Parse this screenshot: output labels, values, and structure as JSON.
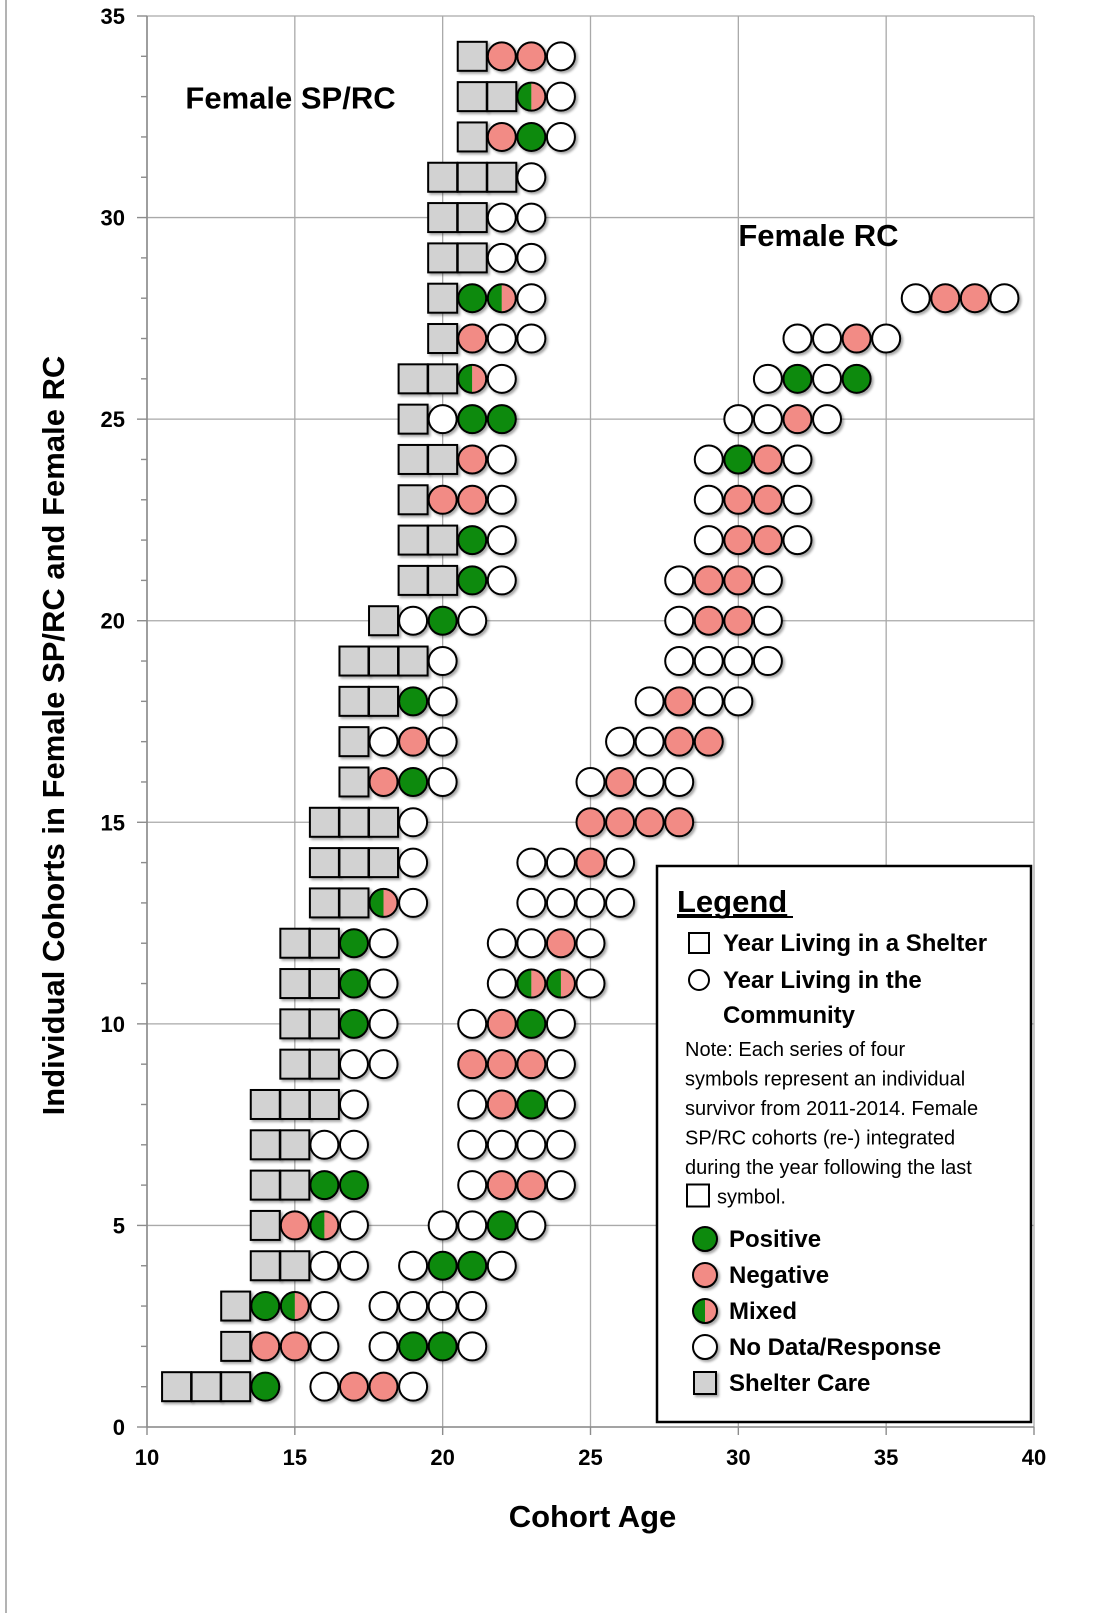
{
  "chart_data": {
    "type": "scatter",
    "title": "",
    "xlabel": "Cohort Age",
    "ylabel": "Individual Cohorts in Female SP/RC and Female RC",
    "xlim": [
      10,
      40
    ],
    "ylim": [
      0,
      35
    ],
    "x_ticks": [
      10,
      15,
      20,
      25,
      30,
      35,
      40
    ],
    "y_ticks": [
      0,
      5,
      10,
      15,
      20,
      25,
      30,
      35
    ],
    "grid": true,
    "group_labels": [
      {
        "name": "Female SP/RC",
        "anchor": [
          11.3,
          32.7
        ]
      },
      {
        "name": "Female RC",
        "anchor": [
          30.0,
          29.3
        ]
      }
    ],
    "colors": {
      "shelter": "#d2d2d2",
      "positive": "#0a8a0a",
      "negative": "#f28b85",
      "none": "#ffffff",
      "stroke": "#000000"
    },
    "cohorts": [
      {
        "group": "Female SP/RC",
        "y": 1,
        "ages": [
          11,
          12,
          13,
          14
        ],
        "status": [
          "shelter",
          "shelter",
          "shelter",
          "positive"
        ]
      },
      {
        "group": "Female SP/RC",
        "y": 2,
        "ages": [
          13,
          14,
          15,
          16
        ],
        "status": [
          "shelter",
          "negative",
          "negative",
          "none"
        ]
      },
      {
        "group": "Female SP/RC",
        "y": 3,
        "ages": [
          13,
          14,
          15,
          16
        ],
        "status": [
          "shelter",
          "positive",
          "mixed",
          "none"
        ]
      },
      {
        "group": "Female SP/RC",
        "y": 4,
        "ages": [
          14,
          15,
          16,
          17
        ],
        "status": [
          "shelter",
          "shelter",
          "none",
          "none"
        ]
      },
      {
        "group": "Female SP/RC",
        "y": 5,
        "ages": [
          14,
          15,
          16,
          17
        ],
        "status": [
          "shelter",
          "negative",
          "mixed",
          "none"
        ]
      },
      {
        "group": "Female SP/RC",
        "y": 6,
        "ages": [
          14,
          15,
          16,
          17
        ],
        "status": [
          "shelter",
          "shelter",
          "positive",
          "positive"
        ]
      },
      {
        "group": "Female SP/RC",
        "y": 7,
        "ages": [
          14,
          15,
          16,
          17
        ],
        "status": [
          "shelter",
          "shelter",
          "none",
          "none"
        ]
      },
      {
        "group": "Female SP/RC",
        "y": 8,
        "ages": [
          14,
          15,
          16,
          17
        ],
        "status": [
          "shelter",
          "shelter",
          "shelter",
          "none"
        ]
      },
      {
        "group": "Female SP/RC",
        "y": 9,
        "ages": [
          15,
          16,
          17,
          18
        ],
        "status": [
          "shelter",
          "shelter",
          "none",
          "none"
        ]
      },
      {
        "group": "Female SP/RC",
        "y": 10,
        "ages": [
          15,
          16,
          17,
          18
        ],
        "status": [
          "shelter",
          "shelter",
          "positive",
          "none"
        ]
      },
      {
        "group": "Female SP/RC",
        "y": 11,
        "ages": [
          15,
          16,
          17,
          18
        ],
        "status": [
          "shelter",
          "shelter",
          "positive",
          "none"
        ]
      },
      {
        "group": "Female SP/RC",
        "y": 12,
        "ages": [
          15,
          16,
          17,
          18
        ],
        "status": [
          "shelter",
          "shelter",
          "positive",
          "none"
        ]
      },
      {
        "group": "Female SP/RC",
        "y": 13,
        "ages": [
          16,
          17,
          18,
          19
        ],
        "status": [
          "shelter",
          "shelter",
          "mixed",
          "none"
        ]
      },
      {
        "group": "Female SP/RC",
        "y": 14,
        "ages": [
          16,
          17,
          18,
          19
        ],
        "status": [
          "shelter",
          "shelter",
          "shelter",
          "none"
        ]
      },
      {
        "group": "Female SP/RC",
        "y": 15,
        "ages": [
          16,
          17,
          18,
          19
        ],
        "status": [
          "shelter",
          "shelter",
          "shelter",
          "none"
        ]
      },
      {
        "group": "Female SP/RC",
        "y": 16,
        "ages": [
          17,
          18,
          19,
          20
        ],
        "status": [
          "shelter",
          "negative",
          "positive",
          "none"
        ]
      },
      {
        "group": "Female SP/RC",
        "y": 17,
        "ages": [
          17,
          18,
          19,
          20
        ],
        "status": [
          "shelter",
          "none",
          "negative",
          "none"
        ]
      },
      {
        "group": "Female SP/RC",
        "y": 18,
        "ages": [
          17,
          18,
          19,
          20
        ],
        "status": [
          "shelter",
          "shelter",
          "positive",
          "none"
        ]
      },
      {
        "group": "Female SP/RC",
        "y": 19,
        "ages": [
          17,
          18,
          19,
          20
        ],
        "status": [
          "shelter",
          "shelter",
          "shelter",
          "none"
        ]
      },
      {
        "group": "Female SP/RC",
        "y": 20,
        "ages": [
          18,
          19,
          20,
          21
        ],
        "status": [
          "shelter",
          "none",
          "positive",
          "none"
        ]
      },
      {
        "group": "Female SP/RC",
        "y": 21,
        "ages": [
          19,
          20,
          21,
          22
        ],
        "status": [
          "shelter",
          "shelter",
          "positive",
          "none"
        ]
      },
      {
        "group": "Female SP/RC",
        "y": 22,
        "ages": [
          19,
          20,
          21,
          22
        ],
        "status": [
          "shelter",
          "shelter",
          "positive",
          "none"
        ]
      },
      {
        "group": "Female SP/RC",
        "y": 23,
        "ages": [
          19,
          20,
          21,
          22
        ],
        "status": [
          "shelter",
          "negative",
          "negative",
          "none"
        ]
      },
      {
        "group": "Female SP/RC",
        "y": 24,
        "ages": [
          19,
          20,
          21,
          22
        ],
        "status": [
          "shelter",
          "shelter",
          "negative",
          "none"
        ]
      },
      {
        "group": "Female SP/RC",
        "y": 25,
        "ages": [
          19,
          20,
          21,
          22
        ],
        "status": [
          "shelter",
          "none",
          "positive",
          "positive"
        ]
      },
      {
        "group": "Female SP/RC",
        "y": 26,
        "ages": [
          19,
          20,
          21,
          22
        ],
        "status": [
          "shelter",
          "shelter",
          "mixed",
          "none"
        ]
      },
      {
        "group": "Female SP/RC",
        "y": 27,
        "ages": [
          20,
          21,
          22,
          23
        ],
        "status": [
          "shelter",
          "negative",
          "none",
          "none"
        ]
      },
      {
        "group": "Female SP/RC",
        "y": 28,
        "ages": [
          20,
          21,
          22,
          23
        ],
        "status": [
          "shelter",
          "positive",
          "mixed",
          "none"
        ]
      },
      {
        "group": "Female SP/RC",
        "y": 29,
        "ages": [
          20,
          21,
          22,
          23
        ],
        "status": [
          "shelter",
          "shelter",
          "none",
          "none"
        ]
      },
      {
        "group": "Female SP/RC",
        "y": 30,
        "ages": [
          20,
          21,
          22,
          23
        ],
        "status": [
          "shelter",
          "shelter",
          "none",
          "none"
        ]
      },
      {
        "group": "Female SP/RC",
        "y": 31,
        "ages": [
          20,
          21,
          22,
          23
        ],
        "status": [
          "shelter",
          "shelter",
          "shelter",
          "none"
        ]
      },
      {
        "group": "Female SP/RC",
        "y": 32,
        "ages": [
          21,
          22,
          23,
          24
        ],
        "status": [
          "shelter",
          "negative",
          "positive",
          "none"
        ]
      },
      {
        "group": "Female SP/RC",
        "y": 33,
        "ages": [
          21,
          22,
          23,
          24
        ],
        "status": [
          "shelter",
          "shelter",
          "mixed",
          "none"
        ]
      },
      {
        "group": "Female SP/RC",
        "y": 34,
        "ages": [
          21,
          22,
          23,
          24
        ],
        "status": [
          "shelter",
          "negative",
          "negative",
          "none"
        ]
      },
      {
        "group": "Female RC",
        "y": 1,
        "ages": [
          16,
          17,
          18,
          19
        ],
        "status": [
          "none",
          "negative",
          "negative",
          "none"
        ]
      },
      {
        "group": "Female RC",
        "y": 2,
        "ages": [
          18,
          19,
          20,
          21
        ],
        "status": [
          "none",
          "positive",
          "positive",
          "none"
        ]
      },
      {
        "group": "Female RC",
        "y": 3,
        "ages": [
          18,
          19,
          20,
          21
        ],
        "status": [
          "none",
          "none",
          "none",
          "none"
        ]
      },
      {
        "group": "Female RC",
        "y": 4,
        "ages": [
          19,
          20,
          21,
          22
        ],
        "status": [
          "none",
          "positive",
          "positive",
          "none"
        ]
      },
      {
        "group": "Female RC",
        "y": 5,
        "ages": [
          20,
          21,
          22,
          23
        ],
        "status": [
          "none",
          "none",
          "positive",
          "none"
        ]
      },
      {
        "group": "Female RC",
        "y": 6,
        "ages": [
          21,
          22,
          23,
          24
        ],
        "status": [
          "none",
          "negative",
          "negative",
          "none"
        ]
      },
      {
        "group": "Female RC",
        "y": 7,
        "ages": [
          21,
          22,
          23,
          24
        ],
        "status": [
          "none",
          "none",
          "none",
          "none"
        ]
      },
      {
        "group": "Female RC",
        "y": 8,
        "ages": [
          21,
          22,
          23,
          24
        ],
        "status": [
          "none",
          "negative",
          "positive",
          "none"
        ]
      },
      {
        "group": "Female RC",
        "y": 9,
        "ages": [
          21,
          22,
          23,
          24
        ],
        "status": [
          "negative",
          "negative",
          "negative",
          "none"
        ]
      },
      {
        "group": "Female RC",
        "y": 10,
        "ages": [
          21,
          22,
          23,
          24
        ],
        "status": [
          "none",
          "negative",
          "positive",
          "none"
        ]
      },
      {
        "group": "Female RC",
        "y": 11,
        "ages": [
          22,
          23,
          24,
          25
        ],
        "status": [
          "none",
          "mixed",
          "mixed",
          "none"
        ]
      },
      {
        "group": "Female RC",
        "y": 12,
        "ages": [
          22,
          23,
          24,
          25
        ],
        "status": [
          "none",
          "none",
          "negative",
          "none"
        ]
      },
      {
        "group": "Female RC",
        "y": 13,
        "ages": [
          23,
          24,
          25,
          26
        ],
        "status": [
          "none",
          "none",
          "none",
          "none"
        ]
      },
      {
        "group": "Female RC",
        "y": 14,
        "ages": [
          23,
          24,
          25,
          26
        ],
        "status": [
          "none",
          "none",
          "negative",
          "none"
        ]
      },
      {
        "group": "Female RC",
        "y": 15,
        "ages": [
          25,
          26,
          27,
          28
        ],
        "status": [
          "negative",
          "negative",
          "negative",
          "negative"
        ]
      },
      {
        "group": "Female RC",
        "y": 16,
        "ages": [
          25,
          26,
          27,
          28
        ],
        "status": [
          "none",
          "negative",
          "none",
          "none"
        ]
      },
      {
        "group": "Female RC",
        "y": 17,
        "ages": [
          26,
          27,
          28,
          29
        ],
        "status": [
          "none",
          "none",
          "negative",
          "negative"
        ]
      },
      {
        "group": "Female RC",
        "y": 18,
        "ages": [
          27,
          28,
          29,
          30
        ],
        "status": [
          "none",
          "negative",
          "none",
          "none"
        ]
      },
      {
        "group": "Female RC",
        "y": 19,
        "ages": [
          28,
          29,
          30,
          31
        ],
        "status": [
          "none",
          "none",
          "none",
          "none"
        ]
      },
      {
        "group": "Female RC",
        "y": 20,
        "ages": [
          28,
          29,
          30,
          31
        ],
        "status": [
          "none",
          "negative",
          "negative",
          "none"
        ]
      },
      {
        "group": "Female RC",
        "y": 21,
        "ages": [
          28,
          29,
          30,
          31
        ],
        "status": [
          "none",
          "negative",
          "negative",
          "none"
        ]
      },
      {
        "group": "Female RC",
        "y": 22,
        "ages": [
          29,
          30,
          31,
          32
        ],
        "status": [
          "none",
          "negative",
          "negative",
          "none"
        ]
      },
      {
        "group": "Female RC",
        "y": 23,
        "ages": [
          29,
          30,
          31,
          32
        ],
        "status": [
          "none",
          "negative",
          "negative",
          "none"
        ]
      },
      {
        "group": "Female RC",
        "y": 24,
        "ages": [
          29,
          30,
          31,
          32
        ],
        "status": [
          "none",
          "positive",
          "negative",
          "none"
        ]
      },
      {
        "group": "Female RC",
        "y": 25,
        "ages": [
          30,
          31,
          32,
          33
        ],
        "status": [
          "none",
          "none",
          "negative",
          "none"
        ]
      },
      {
        "group": "Female RC",
        "y": 26,
        "ages": [
          31,
          32,
          33,
          34
        ],
        "status": [
          "none",
          "positive",
          "none",
          "positive"
        ]
      },
      {
        "group": "Female RC",
        "y": 27,
        "ages": [
          32,
          33,
          34,
          35
        ],
        "status": [
          "none",
          "none",
          "negative",
          "none"
        ]
      },
      {
        "group": "Female RC",
        "y": 28,
        "ages": [
          36,
          37,
          38,
          39
        ],
        "status": [
          "none",
          "negative",
          "negative",
          "none"
        ]
      }
    ],
    "legend": {
      "title": "Legend",
      "placement": "bottom-right",
      "items": [
        {
          "shape": "square",
          "fill": "none",
          "lines": [
            "Year Living in a Shelter"
          ]
        },
        {
          "shape": "circle",
          "fill": "none",
          "lines": [
            "Year Living in the",
            "Community"
          ]
        }
      ],
      "note_lines": [
        "Note:  Each series of  four",
        "symbols represent an individual",
        "survivor from 2011-2014.  Female",
        "SP/RC cohorts (re-) integrated",
        "during the year following the last",
        "symbol."
      ],
      "status_items": [
        {
          "shape": "circle",
          "fill": "positive",
          "label": "Positive"
        },
        {
          "shape": "circle",
          "fill": "negative",
          "label": "Negative"
        },
        {
          "shape": "circle",
          "fill": "mixed",
          "label": "Mixed"
        },
        {
          "shape": "circle",
          "fill": "none",
          "label": "No Data/Response"
        },
        {
          "shape": "square",
          "fill": "shelter",
          "label": "Shelter Care"
        }
      ]
    }
  }
}
